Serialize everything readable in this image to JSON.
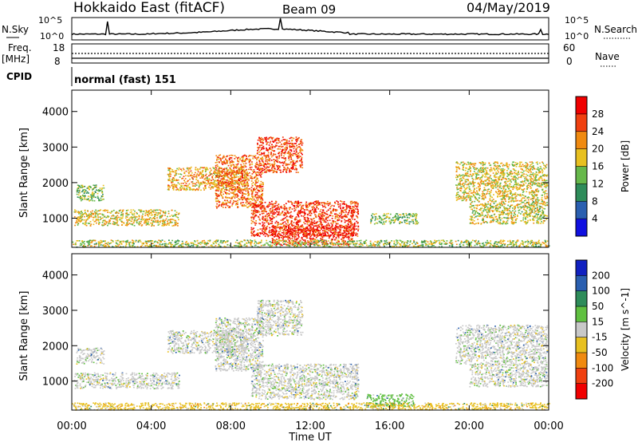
{
  "header": {
    "title": "Hokkaido East (fitACF)",
    "beam": "Beam 09",
    "date": "04/May/2019"
  },
  "strip": {
    "nsky_label": "N.Sky",
    "nsearch_label": "N.Search",
    "freq_label": "Freq.",
    "freq_unit": "[MHz]",
    "nave_label": "Nave",
    "cpid_label": "CPID",
    "left_top": "10^5",
    "left_bottom": "10^0",
    "right_top": "10^5",
    "right_bottom": "10^0",
    "freq_ticks": [
      "18",
      "8"
    ],
    "nave_ticks": [
      "60",
      "0"
    ],
    "cpid_value": "normal (fast) 151"
  },
  "chart_data": [
    {
      "type": "heatmap",
      "title": "",
      "xlabel": "",
      "ylabel": "Slant Range [km]",
      "x_ticks": [
        "00:00",
        "04:00",
        "08:00",
        "12:00",
        "16:00",
        "20:00",
        "00:00"
      ],
      "xlim": [
        0,
        24
      ],
      "y_ticks": [
        1000,
        2000,
        3000,
        4000
      ],
      "ylim": [
        180,
        4600
      ],
      "colorbar_label": "Power [dB]",
      "colorbar_ticks": [
        4,
        8,
        12,
        16,
        20,
        24,
        28
      ],
      "colorbar_colors": [
        "#1010e0",
        "#2a5fb0",
        "#2e8c5a",
        "#66b84a",
        "#e8c020",
        "#f08a10",
        "#f04010",
        "#f00000"
      ],
      "regions": [
        {
          "t0": 0.1,
          "t1": 5.4,
          "r0": 800,
          "r1": 1250,
          "value": 18
        },
        {
          "t0": 0.2,
          "t1": 1.6,
          "r0": 1500,
          "r1": 1950,
          "value": 14
        },
        {
          "t0": 4.8,
          "t1": 8.8,
          "r0": 1800,
          "r1": 2450,
          "value": 20
        },
        {
          "t0": 7.2,
          "t1": 9.6,
          "r0": 1300,
          "r1": 2800,
          "value": 24
        },
        {
          "t0": 9.0,
          "t1": 14.4,
          "r0": 500,
          "r1": 1500,
          "value": 27
        },
        {
          "t0": 10.0,
          "t1": 14.2,
          "r0": 250,
          "r1": 800,
          "value": 29
        },
        {
          "t0": 9.3,
          "t1": 11.6,
          "r0": 2300,
          "r1": 3300,
          "value": 26
        },
        {
          "t0": 15.0,
          "t1": 17.4,
          "r0": 850,
          "r1": 1150,
          "value": 14
        },
        {
          "t0": 19.3,
          "t1": 23.9,
          "r0": 1500,
          "r1": 2600,
          "value": 18
        },
        {
          "t0": 20.0,
          "t1": 23.9,
          "r0": 850,
          "r1": 1500,
          "value": 17
        },
        {
          "t0": 0.0,
          "t1": 24.0,
          "r0": 200,
          "r1": 400,
          "value": 16
        }
      ]
    },
    {
      "type": "heatmap",
      "title": "",
      "xlabel": "Time UT",
      "ylabel": "Slant Range [km]",
      "x_ticks": [
        "00:00",
        "04:00",
        "08:00",
        "12:00",
        "16:00",
        "20:00",
        "00:00"
      ],
      "xlim": [
        0,
        24
      ],
      "y_ticks": [
        1000,
        2000,
        3000,
        4000
      ],
      "ylim": [
        180,
        4600
      ],
      "colorbar_label": "Velocity [m s^-1]",
      "colorbar_ticks": [
        200,
        100,
        50,
        15,
        -15,
        -50,
        -100,
        -200
      ],
      "colorbar_colors": [
        "#1020c0",
        "#2a5fb0",
        "#2e8c5a",
        "#60c040",
        "#c8c8c8",
        "#e8c020",
        "#f08a10",
        "#f04010",
        "#f00000"
      ],
      "regions": [
        {
          "t0": 0.1,
          "t1": 5.4,
          "r0": 800,
          "r1": 1250,
          "value": 0
        },
        {
          "t0": 0.2,
          "t1": 1.6,
          "r0": 1500,
          "r1": 1950,
          "value": 0
        },
        {
          "t0": 4.8,
          "t1": 8.8,
          "r0": 1800,
          "r1": 2450,
          "value": 0
        },
        {
          "t0": 7.2,
          "t1": 9.6,
          "r0": 1300,
          "r1": 2800,
          "value": 0
        },
        {
          "t0": 9.0,
          "t1": 14.4,
          "r0": 500,
          "r1": 1500,
          "value": 0
        },
        {
          "t0": 9.3,
          "t1": 11.6,
          "r0": 2300,
          "r1": 3300,
          "value": 0
        },
        {
          "t0": 14.8,
          "t1": 17.2,
          "r0": 280,
          "r1": 650,
          "value": 30
        },
        {
          "t0": 19.3,
          "t1": 23.9,
          "r0": 1500,
          "r1": 2600,
          "value": 0
        },
        {
          "t0": 20.0,
          "t1": 23.9,
          "r0": 850,
          "r1": 1500,
          "value": 0
        },
        {
          "t0": 0.0,
          "t1": 24.0,
          "r0": 200,
          "r1": 400,
          "value": -20
        }
      ]
    }
  ]
}
